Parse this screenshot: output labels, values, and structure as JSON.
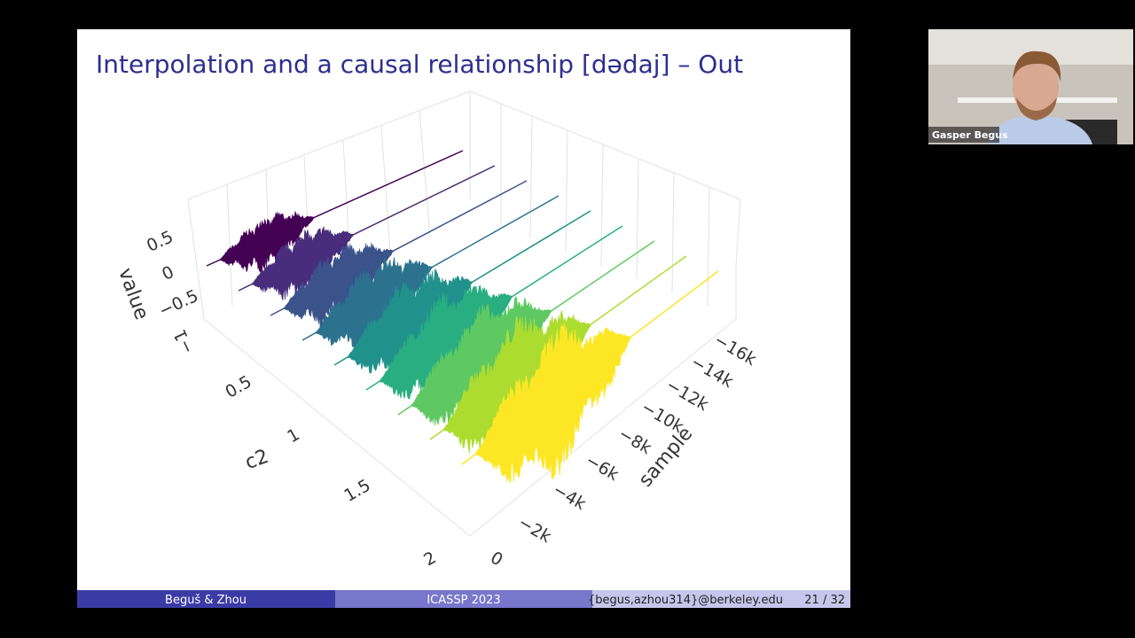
{
  "slide": {
    "title": "Interpolation and a causal relationship [dədaj] – Out",
    "plot": {
      "value_axis": {
        "label": "value",
        "ticks": [
          "0.5",
          "0",
          "−0.5",
          "−1"
        ]
      },
      "c2_axis": {
        "label": "c2",
        "ticks": [
          "0.5",
          "1",
          "1.5",
          "2"
        ]
      },
      "sample_axis": {
        "label": "sample",
        "ticks": [
          "−16k",
          "−14k",
          "−12k",
          "−10k",
          "−8k",
          "−6k",
          "−4k",
          "−2k",
          "0"
        ]
      }
    },
    "footer": {
      "authors": "Beguš & Zhou",
      "conference": "ICASSP 2023",
      "email": "{begus,azhou314}@berkeley.edu",
      "page": "21 / 32"
    }
  },
  "video": {
    "name": "Gasper Begus"
  }
}
